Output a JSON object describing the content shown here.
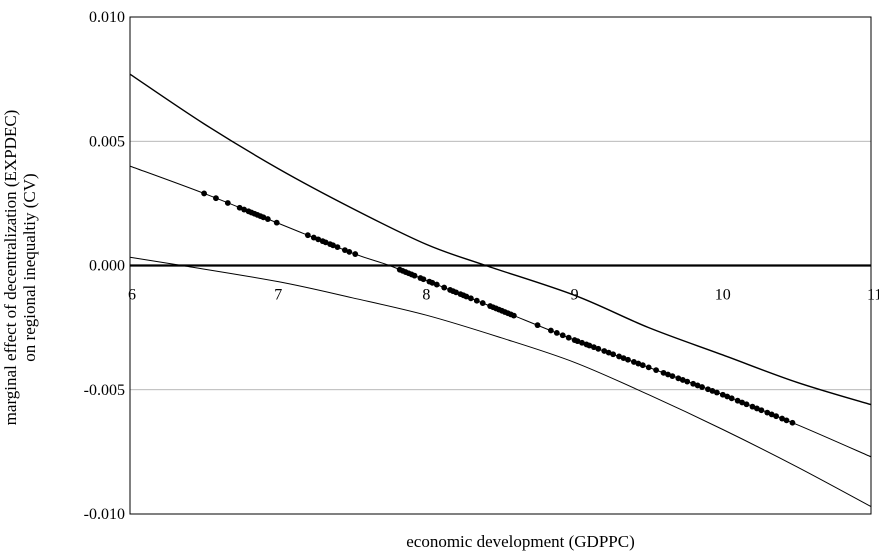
{
  "chart_data": {
    "type": "line",
    "title": "",
    "xlabel": "economic development (GDPPC)",
    "ylabel_line1": "marginal effect of decentralization (EXPDEC)",
    "ylabel_line2": "on regional inequaltiy (CV)",
    "xlim": [
      6,
      11
    ],
    "ylim": [
      -0.01,
      0.01
    ],
    "x_ticks": [
      "6",
      "7",
      "8",
      "9",
      "10",
      "11"
    ],
    "y_ticks": [
      "0.010",
      "0.005",
      "0.000",
      "-0.005",
      "-0.010"
    ],
    "y_tick_values": [
      0.01,
      0.005,
      0.0,
      -0.005,
      -0.01
    ],
    "x_tick_values": [
      6,
      7,
      8,
      9,
      10,
      11
    ],
    "grid": "horizontal",
    "series": [
      {
        "role": "upper-bound",
        "x": [
          6.0,
          6.5,
          7.0,
          7.5,
          8.0,
          8.4,
          9.0,
          9.5,
          10.0,
          10.5,
          11.0
        ],
        "values": [
          0.0077,
          0.0057,
          0.0039,
          0.0023,
          0.00085,
          0.0,
          -0.0012,
          -0.0025,
          -0.0036,
          -0.0047,
          -0.0056
        ]
      },
      {
        "role": "estimate",
        "x": [
          6.0,
          6.5,
          7.0,
          7.5,
          7.75,
          8.0,
          8.5,
          9.0,
          9.5,
          10.0,
          10.5,
          11.0
        ],
        "values": [
          0.004,
          0.0029,
          0.0017,
          0.0005,
          0.0,
          -0.0006,
          -0.0018,
          -0.003,
          -0.0041,
          -0.0052,
          -0.0064,
          -0.0077
        ]
      },
      {
        "role": "lower-bound",
        "x": [
          6.0,
          6.35,
          7.0,
          7.5,
          8.0,
          8.5,
          9.0,
          9.5,
          10.0,
          10.5,
          11.0
        ],
        "values": [
          0.00033,
          0.0,
          -0.00065,
          -0.0013,
          -0.002,
          -0.0029,
          -0.0039,
          -0.0052,
          -0.0066,
          -0.0081,
          -0.0097
        ]
      }
    ],
    "observations_x": [
      6.5,
      6.58,
      6.66,
      6.74,
      6.77,
      6.8,
      6.82,
      6.84,
      6.86,
      6.88,
      6.9,
      6.93,
      6.99,
      7.2,
      7.24,
      7.27,
      7.3,
      7.32,
      7.35,
      7.37,
      7.4,
      7.45,
      7.48,
      7.52,
      7.82,
      7.84,
      7.86,
      7.88,
      7.9,
      7.92,
      7.96,
      7.98,
      8.02,
      8.04,
      8.07,
      8.12,
      8.16,
      8.18,
      8.2,
      8.23,
      8.25,
      8.27,
      8.3,
      8.34,
      8.38,
      8.43,
      8.45,
      8.47,
      8.49,
      8.51,
      8.53,
      8.55,
      8.57,
      8.59,
      8.75,
      8.84,
      8.88,
      8.92,
      8.96,
      9.0,
      9.02,
      9.05,
      9.08,
      9.1,
      9.13,
      9.16,
      9.2,
      9.23,
      9.26,
      9.3,
      9.33,
      9.36,
      9.4,
      9.43,
      9.46,
      9.5,
      9.55,
      9.6,
      9.63,
      9.66,
      9.7,
      9.73,
      9.76,
      9.8,
      9.83,
      9.86,
      9.9,
      9.93,
      9.96,
      10.0,
      10.03,
      10.06,
      10.1,
      10.13,
      10.16,
      10.2,
      10.23,
      10.26,
      10.3,
      10.33,
      10.36,
      10.4,
      10.43,
      10.47
    ]
  }
}
